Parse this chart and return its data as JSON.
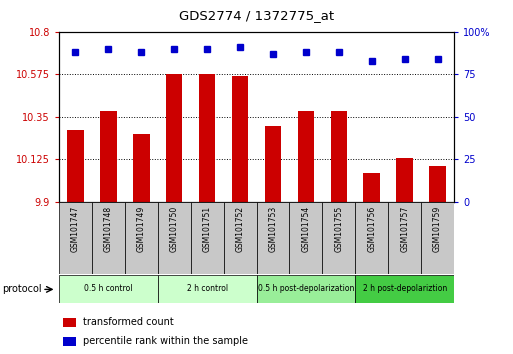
{
  "title": "GDS2774 / 1372775_at",
  "samples": [
    "GSM101747",
    "GSM101748",
    "GSM101749",
    "GSM101750",
    "GSM101751",
    "GSM101752",
    "GSM101753",
    "GSM101754",
    "GSM101755",
    "GSM101756",
    "GSM101757",
    "GSM101759"
  ],
  "red_values": [
    10.28,
    10.38,
    10.26,
    10.575,
    10.575,
    10.565,
    10.3,
    10.38,
    10.38,
    10.05,
    10.13,
    10.09
  ],
  "blue_values": [
    88,
    90,
    88,
    90,
    90,
    91,
    87,
    88,
    88,
    83,
    84,
    84
  ],
  "ylim_left": [
    9.9,
    10.8
  ],
  "ylim_right": [
    0,
    100
  ],
  "yticks_left": [
    9.9,
    10.125,
    10.35,
    10.575,
    10.8
  ],
  "yticks_right": [
    0,
    25,
    50,
    75,
    100
  ],
  "groups": [
    {
      "label": "0.5 h control",
      "start": 0,
      "end": 3,
      "color": "#ccffcc"
    },
    {
      "label": "2 h control",
      "start": 3,
      "end": 6,
      "color": "#ccffcc"
    },
    {
      "label": "0.5 h post-depolarization",
      "start": 6,
      "end": 9,
      "color": "#99ee99"
    },
    {
      "label": "2 h post-depolariztion",
      "start": 9,
      "end": 12,
      "color": "#44cc44"
    }
  ],
  "legend_items": [
    {
      "label": "transformed count",
      "color": "#cc0000"
    },
    {
      "label": "percentile rank within the sample",
      "color": "#0000cc"
    }
  ],
  "bar_color": "#cc0000",
  "dot_color": "#0000cc",
  "protocol_label": "protocol",
  "bar_width": 0.5,
  "sample_box_color": "#c8c8c8",
  "group_colors": [
    "#ccffcc",
    "#ccffcc",
    "#99ee99",
    "#44cc44"
  ]
}
